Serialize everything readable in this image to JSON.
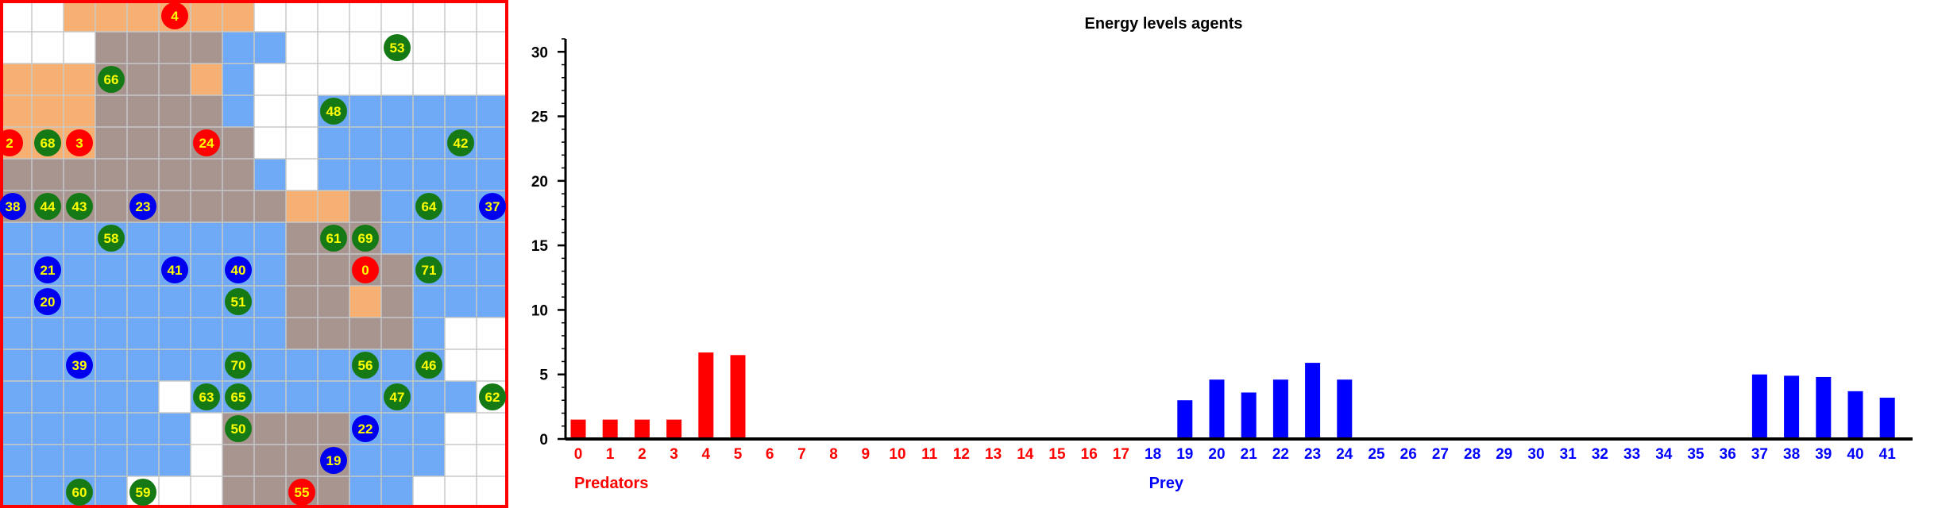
{
  "grid": {
    "cols": 16,
    "rows": 16,
    "colors": {
      "predator_region": "#f5a25a",
      "prey_region": "#3d8ef2",
      "overlap": "#a9958f",
      "grid_line": "#c8c8c8",
      "border": "#ff0000",
      "predator": "#ff0000",
      "prey": "#0000ee",
      "food": "#157a15",
      "label": "#ffff00"
    },
    "cells": [
      "..PPPPPP........",
      "...OOOOBB.......",
      "PPPOOOPB........",
      "PPPOOOOB..BBBBBB",
      "PPPOOOOO..BBBBBB",
      "OOOOOOOOB.BBBBBB",
      "OOOOOOOOOPPOBBBB",
      "BBBBBBBBBOOOBBBB",
      "BBBBBBBBBOOOOBBB",
      "BBBBBBBBBOOPOBBB",
      "BBBBBBBBBOOOOB..",
      "BBBBBBBBBBBBBB..",
      "BBBBB.BBBBBBBBB.",
      "BBBBBB.OOOOBBB..",
      "BBBBBB.OOOOBBB..",
      "BBBB...OOOOBB..."
    ],
    "agents": [
      {
        "id": "4",
        "kind": "predator",
        "col": 5.5,
        "row": 0.5
      },
      {
        "id": "53",
        "kind": "food",
        "col": 12.5,
        "row": 1.5
      },
      {
        "id": "66",
        "kind": "food",
        "col": 3.5,
        "row": 2.5
      },
      {
        "id": "48",
        "kind": "food",
        "col": 10.5,
        "row": 3.5
      },
      {
        "id": "2",
        "kind": "predator",
        "col": 0.3,
        "row": 4.5
      },
      {
        "id": "68",
        "kind": "food",
        "col": 1.5,
        "row": 4.5
      },
      {
        "id": "3",
        "kind": "predator",
        "col": 2.5,
        "row": 4.5
      },
      {
        "id": "24",
        "kind": "predator",
        "col": 6.5,
        "row": 4.5
      },
      {
        "id": "42",
        "kind": "food",
        "col": 14.5,
        "row": 4.5
      },
      {
        "id": "38",
        "kind": "prey",
        "col": 0.4,
        "row": 6.5
      },
      {
        "id": "44",
        "kind": "food",
        "col": 1.5,
        "row": 6.5
      },
      {
        "id": "43",
        "kind": "food",
        "col": 2.5,
        "row": 6.5
      },
      {
        "id": "23",
        "kind": "prey",
        "col": 4.5,
        "row": 6.5
      },
      {
        "id": "64",
        "kind": "food",
        "col": 13.5,
        "row": 6.5
      },
      {
        "id": "37",
        "kind": "prey",
        "col": 15.5,
        "row": 6.5
      },
      {
        "id": "58",
        "kind": "food",
        "col": 3.5,
        "row": 7.5
      },
      {
        "id": "61",
        "kind": "food",
        "col": 10.5,
        "row": 7.5
      },
      {
        "id": "69",
        "kind": "food",
        "col": 11.5,
        "row": 7.5
      },
      {
        "id": "21",
        "kind": "prey",
        "col": 1.5,
        "row": 8.5
      },
      {
        "id": "41",
        "kind": "prey",
        "col": 5.5,
        "row": 8.5
      },
      {
        "id": "40",
        "kind": "prey",
        "col": 7.5,
        "row": 8.5
      },
      {
        "id": "0",
        "kind": "predator",
        "col": 11.5,
        "row": 8.5
      },
      {
        "id": "71",
        "kind": "food",
        "col": 13.5,
        "row": 8.5
      },
      {
        "id": "20",
        "kind": "prey",
        "col": 1.5,
        "row": 9.5
      },
      {
        "id": "51",
        "kind": "food",
        "col": 7.5,
        "row": 9.5
      },
      {
        "id": "39",
        "kind": "prey",
        "col": 2.5,
        "row": 11.5
      },
      {
        "id": "70",
        "kind": "food",
        "col": 7.5,
        "row": 11.5
      },
      {
        "id": "56",
        "kind": "food",
        "col": 11.5,
        "row": 11.5
      },
      {
        "id": "46",
        "kind": "food",
        "col": 13.5,
        "row": 11.5
      },
      {
        "id": "63",
        "kind": "food",
        "col": 6.5,
        "row": 12.5
      },
      {
        "id": "65",
        "kind": "food",
        "col": 7.5,
        "row": 12.5
      },
      {
        "id": "47",
        "kind": "food",
        "col": 12.5,
        "row": 12.5
      },
      {
        "id": "62",
        "kind": "food",
        "col": 15.5,
        "row": 12.5
      },
      {
        "id": "50",
        "kind": "food",
        "col": 7.5,
        "row": 13.5
      },
      {
        "id": "22",
        "kind": "prey",
        "col": 11.5,
        "row": 13.5
      },
      {
        "id": "19",
        "kind": "prey",
        "col": 10.5,
        "row": 14.5
      },
      {
        "id": "60",
        "kind": "food",
        "col": 2.5,
        "row": 15.5
      },
      {
        "id": "59",
        "kind": "food",
        "col": 4.5,
        "row": 15.5
      },
      {
        "id": "55",
        "kind": "predator",
        "col": 9.5,
        "row": 15.5
      }
    ]
  },
  "chart_data": {
    "type": "bar",
    "title": "Energy levels agents",
    "xlabel": "",
    "ylabel": "",
    "ylim": [
      0,
      31
    ],
    "yticks": [
      0,
      5,
      10,
      15,
      20,
      25,
      30
    ],
    "grid": false,
    "categories": [
      "0",
      "1",
      "2",
      "3",
      "4",
      "5",
      "6",
      "7",
      "8",
      "9",
      "10",
      "11",
      "12",
      "13",
      "14",
      "15",
      "16",
      "17",
      "18",
      "19",
      "20",
      "21",
      "22",
      "23",
      "24",
      "25",
      "26",
      "27",
      "28",
      "29",
      "30",
      "31",
      "32",
      "33",
      "34",
      "35",
      "36",
      "37",
      "38",
      "39",
      "40",
      "41"
    ],
    "values": [
      1.5,
      1.5,
      1.5,
      1.5,
      6.7,
      6.5,
      0,
      0,
      0,
      0,
      0,
      0,
      0,
      0,
      0,
      0,
      0,
      0,
      0,
      3.0,
      4.6,
      3.6,
      4.6,
      5.9,
      4.6,
      0,
      0,
      0,
      0,
      0,
      0,
      0,
      0,
      0,
      0,
      0,
      0,
      5.0,
      4.9,
      4.8,
      3.7,
      3.2
    ],
    "groups": [
      {
        "name": "Predators",
        "start": 0,
        "end": 17,
        "color": "#ff0000"
      },
      {
        "name": "Prey",
        "start": 18,
        "end": 41,
        "color": "#0000ff"
      }
    ]
  }
}
